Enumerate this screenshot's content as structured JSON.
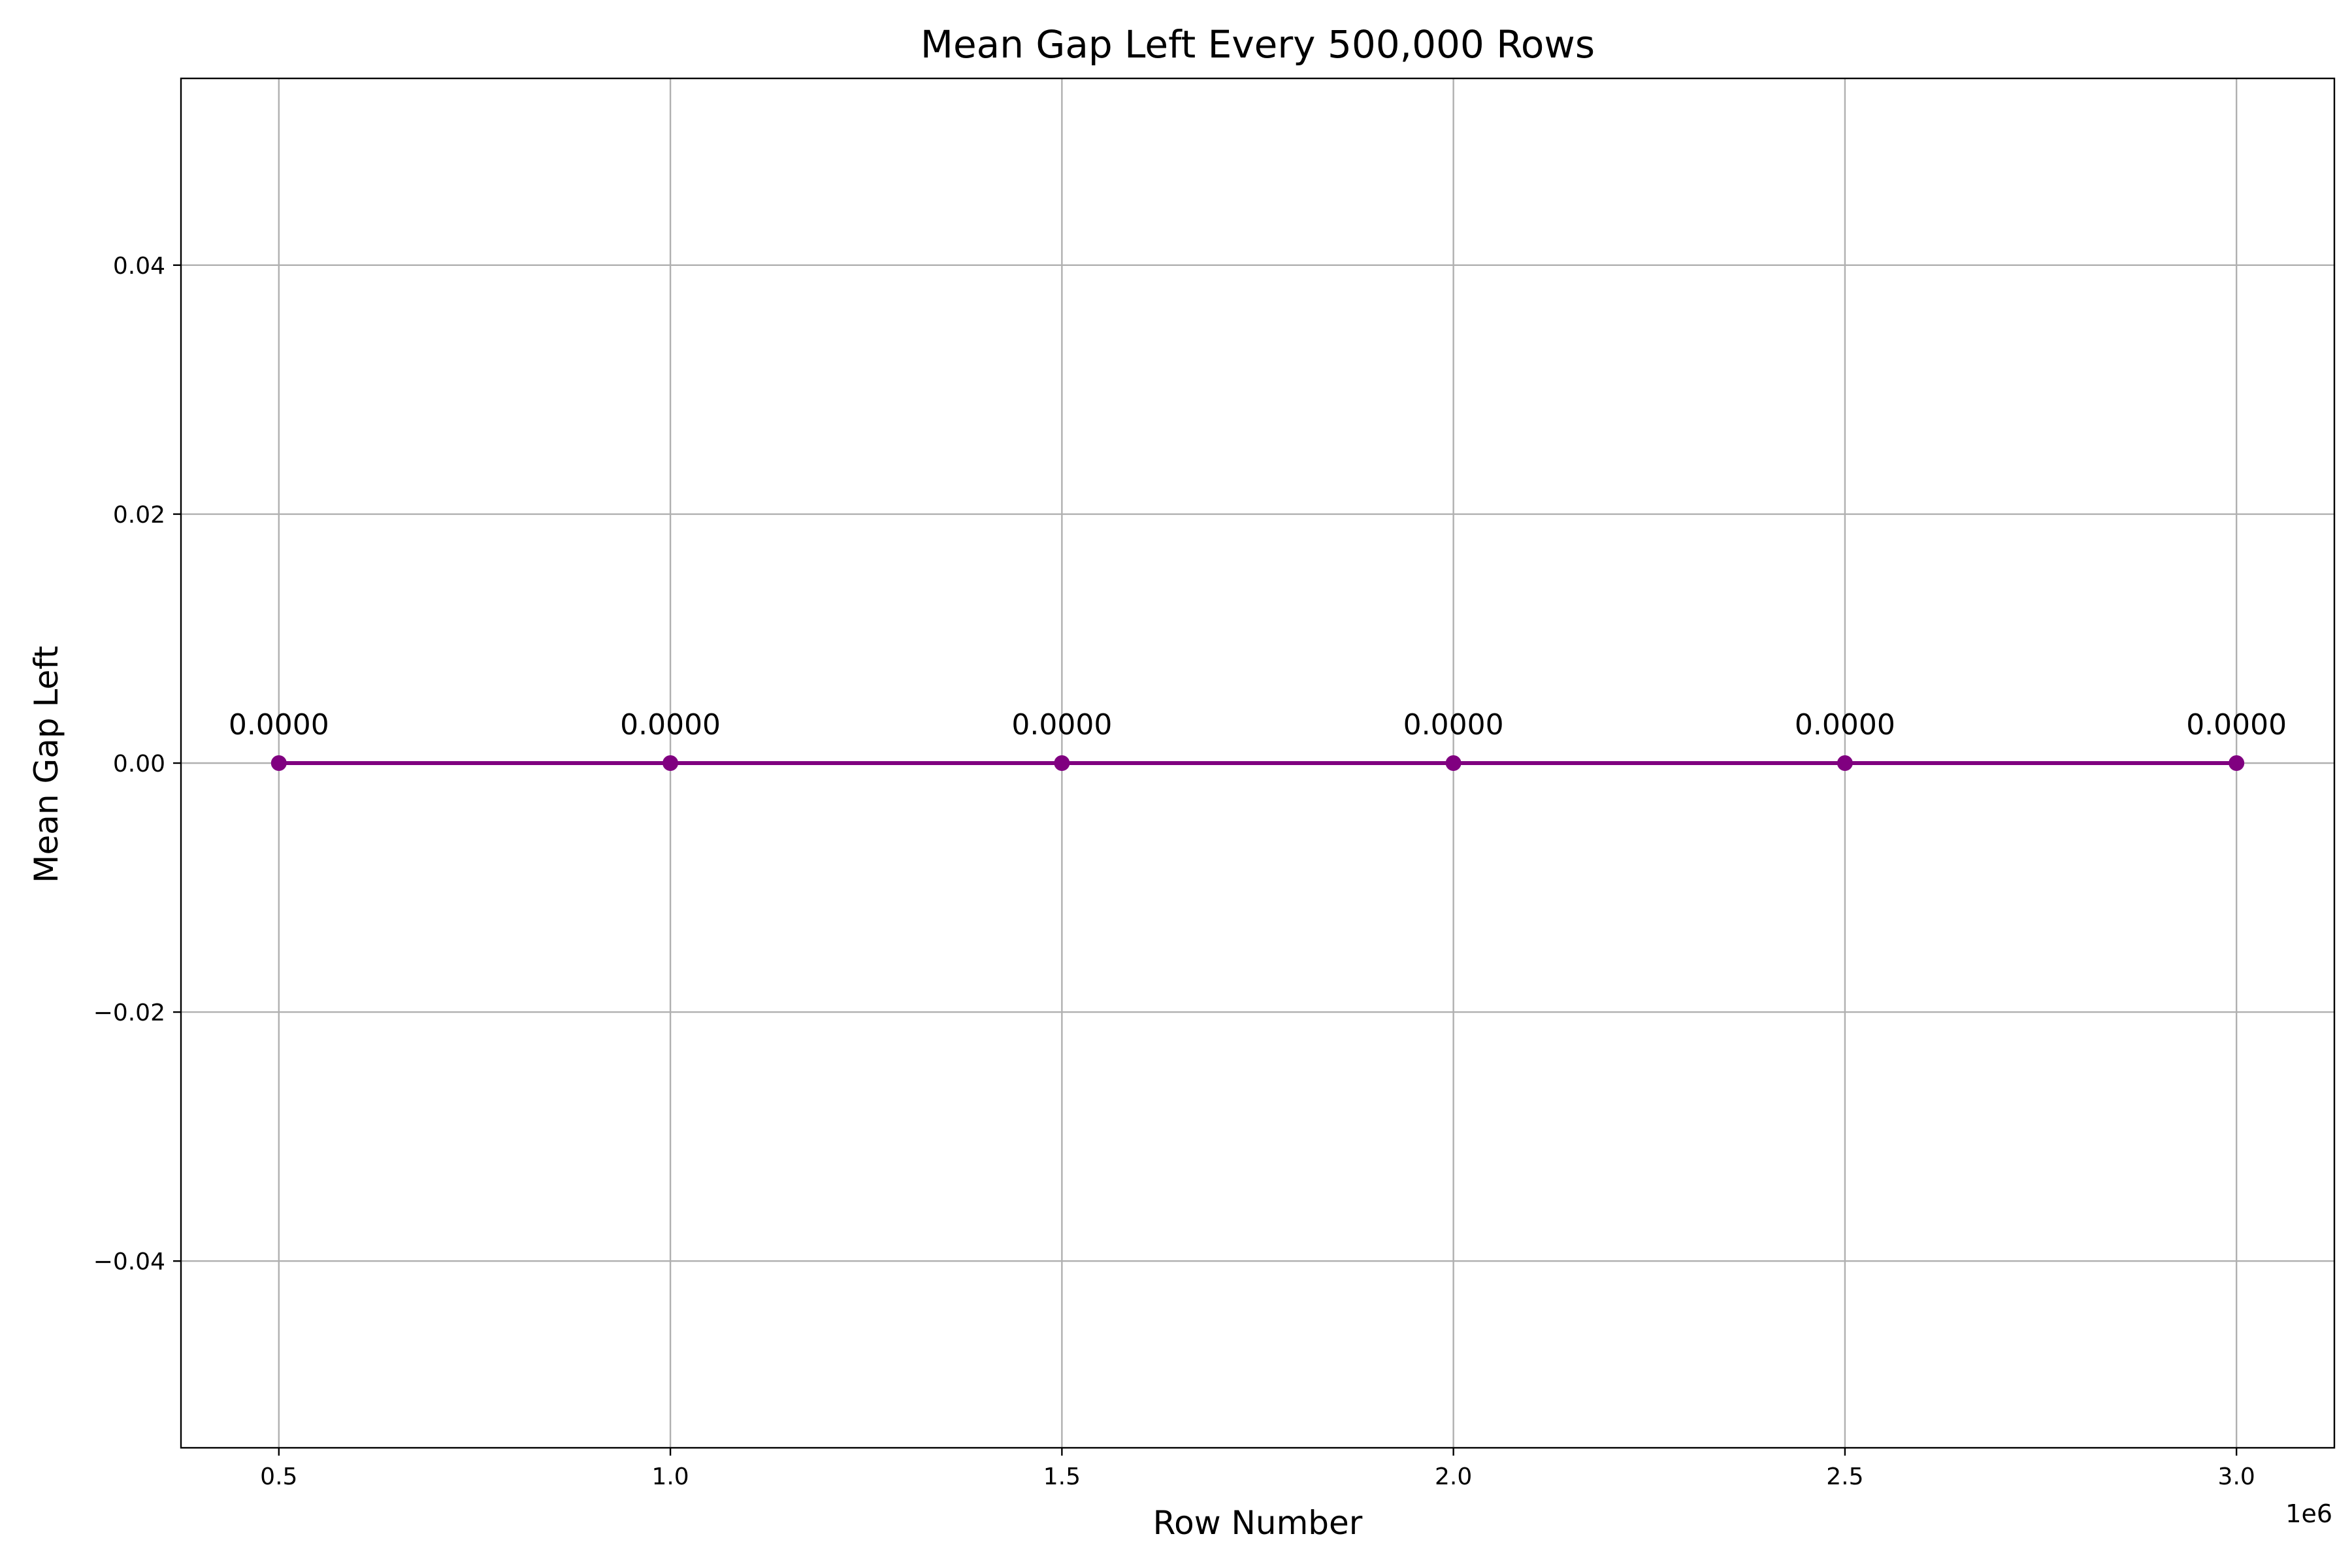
{
  "chart_data": {
    "type": "line",
    "title": "Mean Gap Left Every 500,000 Rows",
    "xlabel": "Row Number",
    "ylabel": "Mean Gap Left",
    "x_offset_label": "1e6",
    "x_scale": 1000000,
    "xlim": [
      375000,
      3125000
    ],
    "ylim": [
      -0.055,
      0.055
    ],
    "grid": true,
    "legend": "none",
    "x_ticks": [
      500000,
      1000000,
      1500000,
      2000000,
      2500000,
      3000000
    ],
    "x_tick_labels": [
      "0.5",
      "1.0",
      "1.5",
      "2.0",
      "2.5",
      "3.0"
    ],
    "y_ticks": [
      -0.04,
      -0.02,
      0.0,
      0.02,
      0.04
    ],
    "y_tick_labels": [
      "−0.04",
      "−0.02",
      "0.00",
      "0.02",
      "0.04"
    ],
    "series": [
      {
        "color": "#800080",
        "marker": "circle",
        "x": [
          500000,
          1000000,
          1500000,
          2000000,
          2500000,
          3000000
        ],
        "y": [
          0.0,
          0.0,
          0.0,
          0.0,
          0.0,
          0.0
        ],
        "data_labels": [
          "0.0000",
          "0.0000",
          "0.0000",
          "0.0000",
          "0.0000",
          "0.0000"
        ]
      }
    ]
  }
}
